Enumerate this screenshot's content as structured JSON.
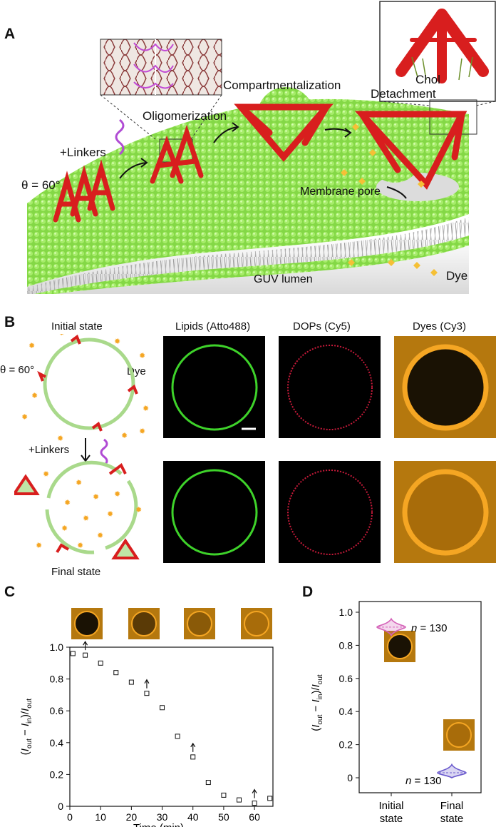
{
  "panels": {
    "A": {
      "letter": "A",
      "labels": {
        "angle": "θ = 60°",
        "linkers": "+Linkers",
        "oligomerization": "Oligomerization",
        "compartmentalization": "Compartmentalization",
        "chol": "Chol",
        "detachment": "Detachment",
        "membrane_pore": "Membrane pore",
        "guv_lumen": "GUV lumen",
        "dye": "Dye"
      }
    },
    "B": {
      "letter": "B",
      "labels": {
        "initial_state": "Initial state",
        "final_state": "Final state",
        "angle": "θ = 60°",
        "dye": "Dye",
        "linkers": "+Linkers"
      },
      "channels": [
        "Lipids (Atto488)",
        "DOPs (Cy5)",
        "Dyes (Cy3)"
      ]
    },
    "C": {
      "letter": "C"
    },
    "D": {
      "letter": "D"
    }
  },
  "chart_data": [
    {
      "type": "scatter",
      "panel": "C",
      "xlabel": "Time (min)",
      "ylabel": "(I_out − I_in)/I_out",
      "xlim": [
        0,
        66
      ],
      "ylim": [
        0,
        1.0
      ],
      "x_ticks": [
        "0",
        "10",
        "20",
        "30",
        "40",
        "50",
        "60"
      ],
      "y_ticks": [
        "0",
        "0.2",
        "0.4",
        "0.6",
        "0.8",
        "1.0"
      ],
      "series": [
        {
          "x": [
            1,
            5,
            10,
            15,
            20,
            25,
            30,
            35,
            40,
            45,
            50,
            55,
            60,
            65
          ],
          "y": [
            0.96,
            0.95,
            0.9,
            0.84,
            0.78,
            0.71,
            0.62,
            0.44,
            0.31,
            0.15,
            0.07,
            0.04,
            0.02,
            0.05
          ]
        }
      ],
      "arrow_times": [
        5,
        25,
        40,
        60
      ],
      "marker": "open-square"
    },
    {
      "type": "violin",
      "panel": "D",
      "ylabel": "(I_out − I_in)/I_out",
      "ylim": [
        0,
        1.0
      ],
      "y_ticks": [
        "0",
        "0.2",
        "0.4",
        "0.6",
        "0.8",
        "1.0"
      ],
      "categories": [
        "Initial state",
        "Final state"
      ],
      "groups": [
        {
          "category": "Initial state",
          "median": 0.91,
          "min": 0.86,
          "max": 0.96,
          "n_label": "n = 130",
          "color": "#d461b8"
        },
        {
          "category": "Final state",
          "median": 0.03,
          "min": 0.0,
          "max": 0.08,
          "n_label": "n = 130",
          "color": "#6a5acd"
        }
      ]
    }
  ],
  "colors": {
    "origami": "#d81e1e",
    "lipid_green": "#8be04a",
    "micro_green": "#3ed22a",
    "micro_red": "#c81a3a",
    "dye_orange": "#f5a623"
  }
}
